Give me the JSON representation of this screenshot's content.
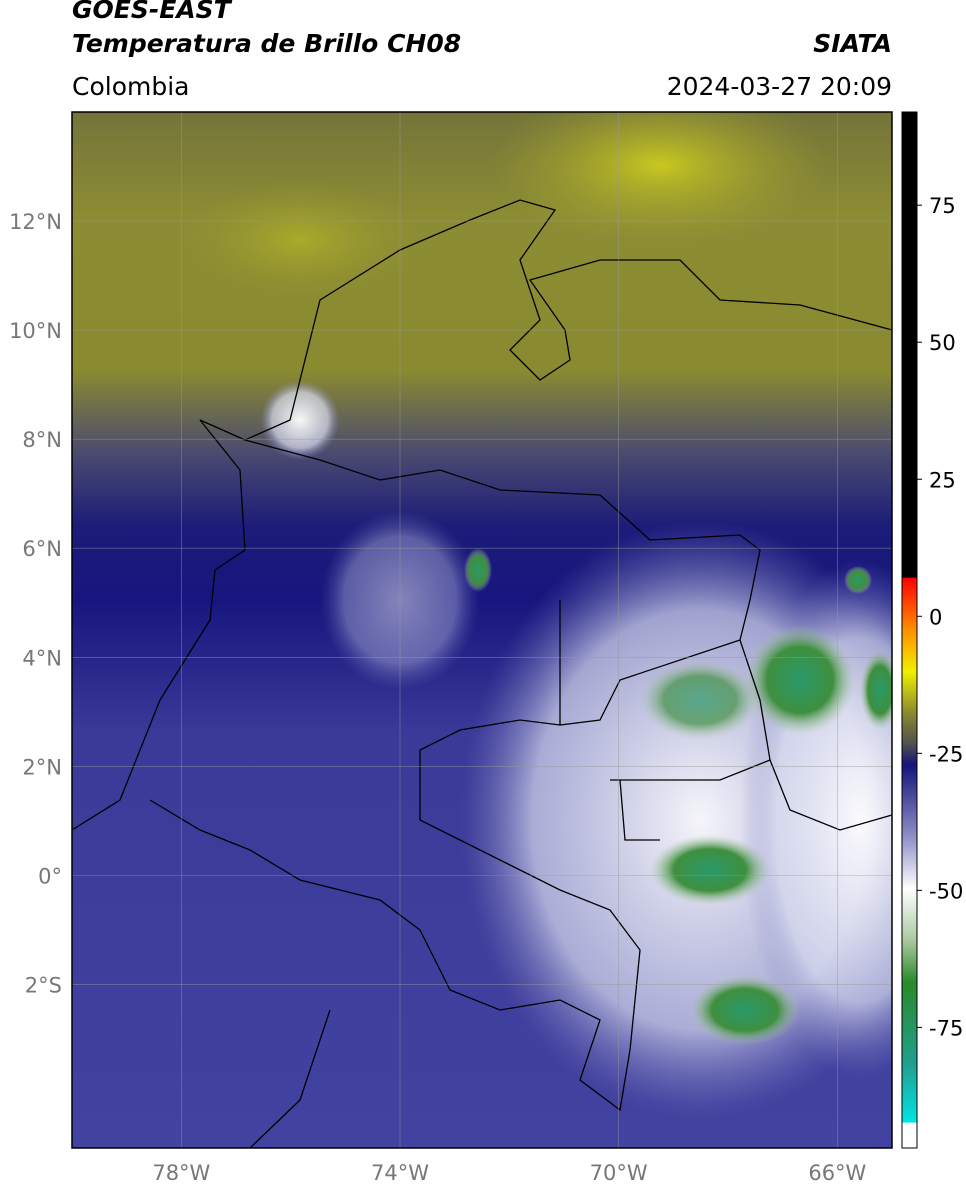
{
  "header": {
    "satellite": "GOES-EAST",
    "product": "Temperatura de Brillo CH08",
    "source": "SIATA",
    "region": "Colombia",
    "datetime": "2024-03-27 20:09"
  },
  "map": {
    "xlim": [
      -80,
      -65
    ],
    "ylim": [
      -5,
      14
    ],
    "xticks": [
      {
        "value": -78,
        "label": "78°W"
      },
      {
        "value": -74,
        "label": "74°W"
      },
      {
        "value": -70,
        "label": "70°W"
      },
      {
        "value": -66,
        "label": "66°W"
      }
    ],
    "yticks": [
      {
        "value": 12,
        "label": "12°N"
      },
      {
        "value": 10,
        "label": "10°N"
      },
      {
        "value": 8,
        "label": "8°N"
      },
      {
        "value": 6,
        "label": "6°N"
      },
      {
        "value": 4,
        "label": "4°N"
      },
      {
        "value": 2,
        "label": "2°N"
      },
      {
        "value": 0,
        "label": "0°"
      },
      {
        "value": -2,
        "label": "2°S"
      }
    ],
    "grid": true
  },
  "colorbar": {
    "lim": [
      -97,
      92
    ],
    "ticks": [
      75,
      50,
      25,
      0,
      -25,
      -50,
      -75
    ]
  }
}
